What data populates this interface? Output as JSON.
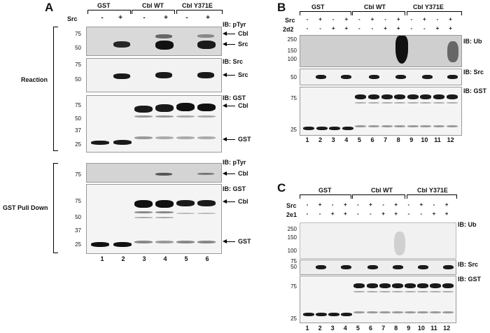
{
  "panels": {
    "A": {
      "letter": "A",
      "groups": [
        "GST",
        "Cbl WT",
        "Cbl Y371E"
      ],
      "src_label": "Src",
      "src_signs": [
        "-",
        "+",
        "-",
        "+",
        "-",
        "+"
      ],
      "lanes": [
        "1",
        "2",
        "3",
        "4",
        "5",
        "6"
      ],
      "sections": [
        "Reaction",
        "GST Pull Down"
      ],
      "blots": [
        {
          "ib": "IB: pTyr",
          "markers": [
            "75",
            "50"
          ],
          "arrows": [
            "Cbl",
            "Src"
          ]
        },
        {
          "ib": "IB: Src",
          "markers": [
            "75",
            "50"
          ],
          "arrows": [
            "Src"
          ]
        },
        {
          "ib": "IB: GST",
          "markers": [
            "75",
            "50",
            "37",
            "25"
          ],
          "arrows": [
            "Cbl",
            "GST"
          ]
        },
        {
          "ib": "IB: pTyr",
          "markers": [
            "75"
          ],
          "arrows": [
            "Cbl"
          ]
        },
        {
          "ib": "IB: GST",
          "markers": [
            "75",
            "50",
            "37",
            "25"
          ],
          "arrows": [
            "Cbl",
            "GST"
          ]
        }
      ]
    },
    "B": {
      "letter": "B",
      "groups": [
        "GST",
        "Cbl WT",
        "Cbl Y371E"
      ],
      "row1_label": "Src",
      "row1_signs": [
        "-",
        "+",
        "-",
        "+",
        "-",
        "+",
        "-",
        "+",
        "-",
        "+",
        "-",
        "+"
      ],
      "row2_label": "2d2",
      "row2_signs": [
        "-",
        "-",
        "+",
        "+",
        "-",
        "-",
        "+",
        "+",
        "-",
        "-",
        "+",
        "+"
      ],
      "lanes": [
        "1",
        "2",
        "3",
        "4",
        "5",
        "6",
        "7",
        "8",
        "9",
        "10",
        "11",
        "12"
      ],
      "blots": [
        {
          "ib": "IB: Ub",
          "markers": [
            "250",
            "150",
            "100"
          ]
        },
        {
          "ib": "IB: Src",
          "markers": [
            "50"
          ]
        },
        {
          "ib": "IB: GST",
          "markers": [
            "75",
            "25"
          ]
        }
      ]
    },
    "C": {
      "letter": "C",
      "groups": [
        "GST",
        "Cbl WT",
        "Cbl Y371E"
      ],
      "row1_label": "Src",
      "row1_signs": [
        "-",
        "+",
        "-",
        "+",
        "-",
        "+",
        "-",
        "+",
        "-",
        "+",
        "-",
        "+"
      ],
      "row2_label": "2e1",
      "row2_signs": [
        "-",
        "-",
        "+",
        "+",
        "-",
        "-",
        "+",
        "+",
        "-",
        "-",
        "+",
        "+"
      ],
      "lanes": [
        "1",
        "2",
        "3",
        "4",
        "5",
        "6",
        "7",
        "8",
        "9",
        "10",
        "11",
        "12"
      ],
      "blots": [
        {
          "ib": "IB: Ub",
          "markers": [
            "250",
            "150",
            "100",
            "75"
          ]
        },
        {
          "ib": "IB: Src",
          "markers": [
            "50"
          ]
        },
        {
          "ib": "IB: GST",
          "markers": [
            "75",
            "25"
          ]
        }
      ]
    }
  }
}
